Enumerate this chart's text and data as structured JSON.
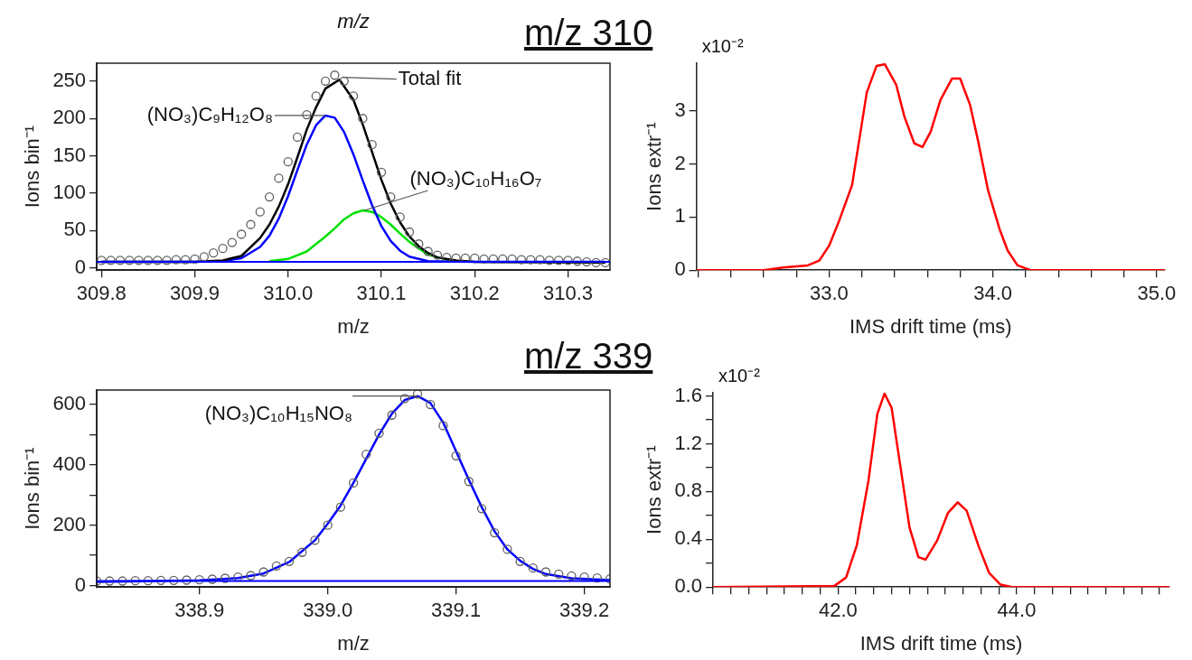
{
  "chart_data": [
    {
      "type": "line",
      "title": "m/z 310",
      "xlabel": "m/z",
      "ylabel": "Ions bin⁻¹",
      "annotations": [
        "m/z",
        {
          "text": "Total fit",
          "x": 310.058,
          "y": 255
        },
        {
          "text": "(NO₃)C₉H₁₂O₈",
          "x": 310.04,
          "y": 204
        },
        {
          "text": "(NO₃)C₁₀H₁₆O₇",
          "x": 310.082,
          "y": 77
        }
      ],
      "xlim": [
        309.795,
        310.345
      ],
      "xticks": [
        309.8,
        {
          "value": 309.9,
          "label": "309.9"
        },
        {
          "value": 310,
          "label": "310.0"
        },
        310.1,
        310.2,
        310.3
      ],
      "ylim": [
        -3,
        274
      ],
      "yticks": [
        0,
        50,
        100,
        150,
        200,
        250
      ],
      "ref_lines": [
        {
          "axis": "y",
          "value": 8,
          "color": "#0000ff"
        }
      ],
      "series": [
        {
          "type": "scatter",
          "marker": "circle",
          "color": "#606060",
          "x": [
            309.8,
            309.81,
            309.82,
            309.83,
            309.84,
            309.85,
            309.86,
            309.87,
            309.88,
            309.89,
            309.9,
            309.91,
            309.92,
            309.93,
            309.94,
            309.95,
            309.96,
            309.97,
            309.98,
            309.99,
            310,
            310.01,
            310.02,
            310.03,
            310.04,
            310.05,
            310.06,
            310.07,
            310.08,
            310.09,
            310.1,
            310.11,
            310.12,
            310.13,
            310.14,
            310.15,
            310.16,
            310.17,
            310.18,
            310.19,
            310.2,
            310.21,
            310.22,
            310.23,
            310.24,
            310.25,
            310.26,
            310.27,
            310.28,
            310.29,
            310.3,
            310.31,
            310.32,
            310.33,
            310.34
          ],
          "values": [
            10,
            10,
            10,
            10,
            10,
            10,
            10,
            10,
            11,
            11,
            12,
            15,
            20,
            26,
            34,
            45,
            58,
            75,
            95,
            120,
            142,
            175,
            205,
            230,
            250,
            258,
            250,
            230,
            200,
            165,
            128,
            95,
            68,
            48,
            32,
            22,
            17,
            14,
            13,
            13,
            13,
            12,
            12,
            12,
            12,
            11,
            11,
            11,
            10,
            10,
            10,
            9,
            8,
            7,
            7
          ]
        },
        {
          "type": "line",
          "color": "#000000",
          "x": [
            309.8,
            309.9,
            309.93,
            309.95,
            309.97,
            309.98,
            309.99,
            310,
            310.01,
            310.02,
            310.03,
            310.04,
            310.055,
            310.07,
            310.08,
            310.09,
            310.1,
            310.11,
            310.12,
            310.13,
            310.14,
            310.15,
            310.16,
            310.18,
            310.2,
            310.34
          ],
          "values": [
            8,
            8,
            10,
            16,
            40,
            58,
            82,
            112,
            148,
            185,
            215,
            240,
            252,
            225,
            192,
            155,
            118,
            86,
            61,
            42,
            29,
            20,
            14,
            10,
            8,
            7
          ]
        },
        {
          "type": "line",
          "color": "#0000ff",
          "x": [
            309.8,
            309.9,
            309.93,
            309.95,
            309.97,
            309.98,
            309.99,
            310,
            310.01,
            310.02,
            310.03,
            310.04,
            310.05,
            310.06,
            310.07,
            310.08,
            310.09,
            310.1,
            310.11,
            310.12,
            310.13,
            310.15,
            310.2,
            310.34
          ],
          "values": [
            8,
            8,
            9,
            13,
            28,
            43,
            66,
            96,
            131,
            165,
            191,
            204,
            201,
            182,
            152,
            117,
            84,
            56,
            36,
            23,
            15,
            9,
            8,
            8
          ]
        },
        {
          "type": "line",
          "color": "#00e000",
          "x": [
            309.98,
            310,
            310.02,
            310.04,
            310.05,
            310.06,
            310.07,
            310.08,
            310.09,
            310.1,
            310.11,
            310.12,
            310.13,
            310.14,
            310.15,
            310.16,
            310.18
          ],
          "values": [
            9,
            12,
            22,
            42,
            53,
            65,
            73,
            77,
            75,
            68,
            58,
            46,
            35,
            26,
            18,
            14,
            9
          ]
        }
      ]
    },
    {
      "type": "line",
      "xlabel": "IMS drift time (ms)",
      "ylabel": "Ions extr⁻¹",
      "annotations": [
        "x10⁻²"
      ],
      "xlim": [
        32.19,
        35.05
      ],
      "xticks": [
        {
          "value": 32.2,
          "label": null
        },
        {
          "value": 32.4,
          "label": null
        },
        {
          "value": 32.6,
          "label": null
        },
        {
          "value": 32.8,
          "label": null
        },
        {
          "value": 33,
          "label": "33.0"
        },
        {
          "value": 33.2,
          "label": null
        },
        {
          "value": 33.4,
          "label": null
        },
        {
          "value": 33.6,
          "label": null
        },
        {
          "value": 33.8,
          "label": null
        },
        {
          "value": 34,
          "label": "34.0"
        },
        {
          "value": 34.2,
          "label": null
        },
        {
          "value": 34.4,
          "label": null
        },
        {
          "value": 34.6,
          "label": null
        },
        {
          "value": 34.8,
          "label": null
        },
        {
          "value": 35,
          "label": "35.0"
        }
      ],
      "ylim": [
        0,
        3.9
      ],
      "yticks": [
        0,
        1,
        2,
        3
      ],
      "series": [
        {
          "color": "#ff0000",
          "x": [
            32.19,
            32.6,
            32.72,
            32.87,
            32.94,
            33,
            33.06,
            33.14,
            33.23,
            33.29,
            33.34,
            33.41,
            33.46,
            33.52,
            33.57,
            33.62,
            33.68,
            33.75,
            33.8,
            33.86,
            33.91,
            33.97,
            34.04,
            34.09,
            34.15,
            34.23,
            35.05
          ],
          "values": [
            0,
            0,
            0.05,
            0.09,
            0.18,
            0.46,
            0.92,
            1.6,
            3.35,
            3.85,
            3.88,
            3.49,
            2.89,
            2.39,
            2.32,
            2.61,
            3.21,
            3.61,
            3.61,
            3.12,
            2.43,
            1.51,
            0.78,
            0.37,
            0.09,
            0,
            0
          ]
        }
      ]
    },
    {
      "type": "line",
      "title": "m/z 339",
      "xlabel": "m/z",
      "ylabel": "Ions bin⁻¹",
      "annotations": [
        {
          "text": "(NO₃)C₁₀H₁₅NO₈",
          "x": 339.07,
          "y": 628
        }
      ],
      "xlim": [
        338.82,
        339.22
      ],
      "xticks": [
        338.9,
        {
          "value": 339,
          "label": "339.0"
        },
        339.1,
        339.2
      ],
      "ylim": [
        -5,
        648
      ],
      "yticks": [
        0,
        {
          "value": 100,
          "label": null
        },
        200,
        {
          "value": 300,
          "label": null
        },
        400,
        {
          "value": 500,
          "label": null
        },
        600
      ],
      "ref_lines": [
        {
          "axis": "y",
          "value": 15,
          "color": "#0000ff"
        }
      ],
      "series": [
        {
          "type": "scatter",
          "marker": "circle",
          "color": "#606060",
          "x": [
            338.82,
            338.83,
            338.84,
            338.85,
            338.86,
            338.87,
            338.88,
            338.89,
            338.9,
            338.91,
            338.92,
            338.93,
            338.94,
            338.95,
            338.96,
            338.97,
            338.98,
            338.99,
            339,
            339.01,
            339.02,
            339.03,
            339.04,
            339.05,
            339.06,
            339.07,
            339.08,
            339.09,
            339.1,
            339.11,
            339.12,
            339.13,
            339.14,
            339.15,
            339.16,
            339.17,
            339.18,
            339.19,
            339.2,
            339.21,
            339.22
          ],
          "values": [
            15,
            15,
            15,
            16,
            16,
            17,
            17,
            18,
            19,
            21,
            24,
            28,
            33,
            45,
            65,
            80,
            110,
            150,
            200,
            260,
            340,
            435,
            505,
            565,
            620,
            635,
            600,
            530,
            430,
            345,
            255,
            175,
            120,
            80,
            58,
            45,
            38,
            32,
            28,
            25,
            22
          ]
        },
        {
          "type": "line",
          "color": "#0000ff",
          "x": [
            338.82,
            338.9,
            338.93,
            338.95,
            338.97,
            338.99,
            339,
            339.01,
            339.02,
            339.03,
            339.04,
            339.05,
            339.06,
            339.07,
            339.08,
            339.09,
            339.1,
            339.11,
            339.12,
            339.13,
            339.14,
            339.15,
            339.16,
            339.17,
            339.19,
            339.22
          ],
          "values": [
            12,
            17,
            25,
            40,
            78,
            150,
            205,
            265,
            340,
            420,
            500,
            570,
            615,
            628,
            605,
            540,
            445,
            350,
            260,
            180,
            120,
            82,
            55,
            38,
            24,
            18
          ]
        }
      ]
    },
    {
      "type": "line",
      "xlabel": "IMS drift time (ms)",
      "ylabel": "Ions extr⁻¹",
      "annotations": [
        "x10⁻²"
      ],
      "xlim": [
        40.6,
        45.71
      ],
      "xticks": [
        {
          "value": 40.6,
          "label": null
        },
        {
          "value": 40.8,
          "label": null
        },
        {
          "value": 41,
          "label": null
        },
        {
          "value": 41.2,
          "label": null
        },
        {
          "value": 41.4,
          "label": null
        },
        {
          "value": 41.6,
          "label": null
        },
        {
          "value": 41.8,
          "label": null
        },
        {
          "value": 42,
          "label": "42.0"
        },
        {
          "value": 42.2,
          "label": null
        },
        {
          "value": 42.4,
          "label": null
        },
        {
          "value": 42.6,
          "label": null
        },
        {
          "value": 42.8,
          "label": null
        },
        {
          "value": 43,
          "label": null
        },
        {
          "value": 43.2,
          "label": null
        },
        {
          "value": 43.4,
          "label": null
        },
        {
          "value": 43.6,
          "label": null
        },
        {
          "value": 43.8,
          "label": null
        },
        {
          "value": 44,
          "label": "44.0"
        },
        {
          "value": 44.2,
          "label": null
        },
        {
          "value": 44.4,
          "label": null
        },
        {
          "value": 44.6,
          "label": null
        },
        {
          "value": 44.8,
          "label": null
        },
        {
          "value": 45,
          "label": null
        },
        {
          "value": 45.2,
          "label": null
        },
        {
          "value": 45.4,
          "label": null
        },
        {
          "value": 45.6,
          "label": null
        }
      ],
      "ylim": [
        0,
        1.627
      ],
      "yticks": [
        {
          "value": 0,
          "label": "0.0"
        },
        {
          "value": 0.2,
          "label": null
        },
        0.4,
        {
          "value": 0.6,
          "label": null
        },
        0.8,
        {
          "value": 1,
          "label": null
        },
        1.2,
        {
          "value": 1.4,
          "label": null
        },
        1.6
      ],
      "series": [
        {
          "color": "#ff0000",
          "x": [
            40.6,
            41.96,
            42.09,
            42.21,
            42.34,
            42.44,
            42.52,
            42.6,
            42.7,
            42.8,
            42.9,
            42.98,
            43.11,
            43.23,
            43.34,
            43.44,
            43.57,
            43.69,
            43.82,
            43.95,
            45.71
          ],
          "values": [
            0,
            0.01,
            0.08,
            0.35,
            0.89,
            1.45,
            1.62,
            1.5,
            1,
            0.5,
            0.25,
            0.23,
            0.39,
            0.62,
            0.71,
            0.64,
            0.35,
            0.12,
            0.02,
            0,
            0
          ]
        }
      ]
    }
  ]
}
